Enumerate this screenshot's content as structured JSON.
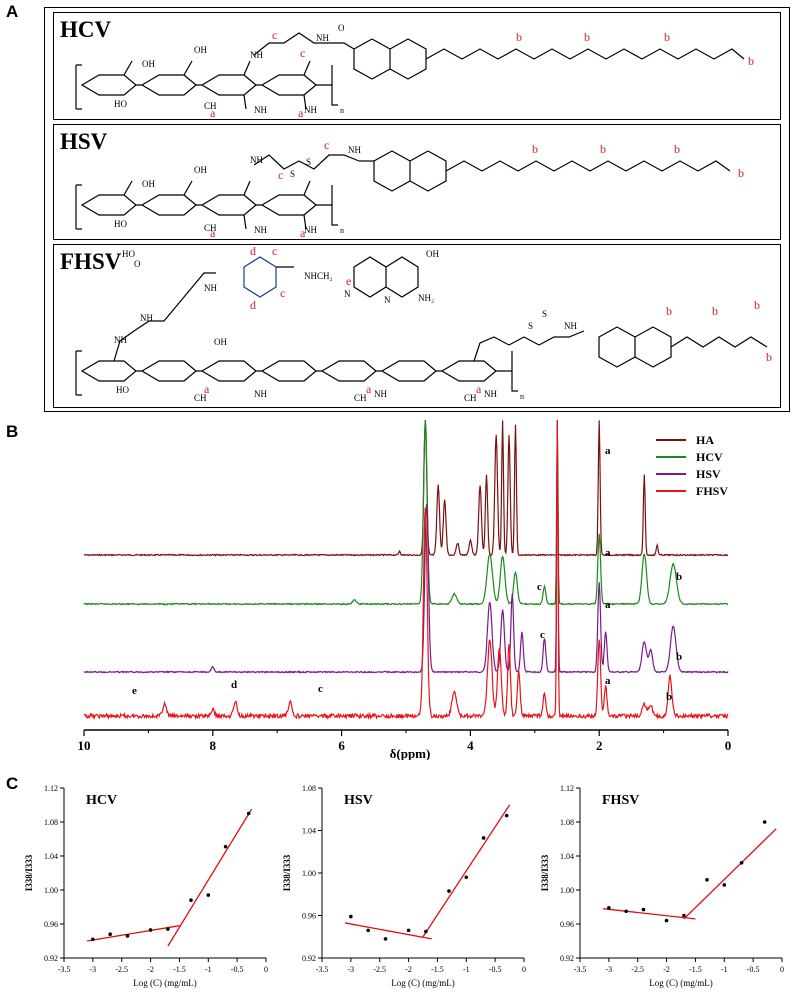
{
  "panels": {
    "a": "A",
    "b": "B",
    "c": "C"
  },
  "structures": [
    {
      "name": "HCV",
      "unit_labels": [
        "c",
        "c",
        "a",
        "a",
        "b",
        "b",
        "b",
        "b"
      ]
    },
    {
      "name": "HSV",
      "unit_labels": [
        "c",
        "c",
        "a",
        "a",
        "b",
        "b",
        "b",
        "b"
      ]
    },
    {
      "name": "FHSV",
      "unit_labels": [
        "d",
        "c",
        "d",
        "c",
        "e",
        "a",
        "a",
        "a",
        "b",
        "b",
        "b",
        "b"
      ]
    }
  ],
  "chem": {
    "oh": "OH",
    "ho": "HO",
    "nh": "NH",
    "ch3": "CH",
    "o": "O",
    "n": "n",
    "s": "S",
    "nh2": "NH₂",
    "nhch2": "NHCH₂",
    "n_atom": "N"
  },
  "nmr": {
    "legend": [
      {
        "name": "HA",
        "color": "#7b1010"
      },
      {
        "name": "HCV",
        "color": "#1a8a1a"
      },
      {
        "name": "HSV",
        "color": "#7a1a8a"
      },
      {
        "name": "FHSV",
        "color": "#e8141a"
      }
    ],
    "xlabel": "δ(ppm)",
    "x_ticks": [
      "10",
      "8",
      "6",
      "4",
      "2",
      "0"
    ],
    "peak_labels": [
      "a",
      "a",
      "a",
      "a",
      "b",
      "b",
      "b",
      "c",
      "c",
      "c",
      "d",
      "e"
    ]
  },
  "chart_data": [
    {
      "type": "scatter",
      "title": "HCV",
      "xlabel": "Log (C) (mg/mL)",
      "ylabel": "I338/I333",
      "xlim": [
        -3.5,
        0
      ],
      "ylim": [
        0.92,
        1.12
      ],
      "x_ticks": [
        "-3.5",
        "-3",
        "-2.5",
        "-2",
        "-1.5",
        "-1",
        "-0.5",
        "0"
      ],
      "y_ticks": [
        "0.92",
        "0.96",
        "1.00",
        "1.04",
        "1.08",
        "1.12"
      ],
      "points": [
        [
          -3.0,
          0.942
        ],
        [
          -2.7,
          0.948
        ],
        [
          -2.4,
          0.946
        ],
        [
          -2.0,
          0.953
        ],
        [
          -1.7,
          0.954
        ],
        [
          -1.3,
          0.988
        ],
        [
          -1.0,
          0.994
        ],
        [
          -0.7,
          1.051
        ],
        [
          -0.3,
          1.09
        ]
      ]
    },
    {
      "type": "scatter",
      "title": "HSV",
      "xlabel": "Log (C) (mg/mL)",
      "ylabel": "I338/I333",
      "xlim": [
        -3.5,
        0
      ],
      "ylim": [
        0.92,
        1.08
      ],
      "x_ticks": [
        "-3.5",
        "-3",
        "-2.5",
        "-2",
        "-1.5",
        "-1",
        "-0.5",
        "0"
      ],
      "y_ticks": [
        "0.92",
        "0.96",
        "1.00",
        "1.04",
        "1.08"
      ],
      "points": [
        [
          -3.0,
          0.959
        ],
        [
          -2.7,
          0.946
        ],
        [
          -2.4,
          0.938
        ],
        [
          -2.0,
          0.946
        ],
        [
          -1.7,
          0.945
        ],
        [
          -1.3,
          0.983
        ],
        [
          -1.0,
          0.996
        ],
        [
          -0.7,
          1.033
        ],
        [
          -0.3,
          1.054
        ]
      ]
    },
    {
      "type": "scatter",
      "title": "FHSV",
      "xlabel": "Log (C) (mg/mL)",
      "ylabel": "I338/I333",
      "xlim": [
        -3.5,
        0
      ],
      "ylim": [
        0.92,
        1.12
      ],
      "x_ticks": [
        "-3.5",
        "-3",
        "-2.5",
        "-2",
        "-1.5",
        "-1",
        "-0.5",
        "0"
      ],
      "y_ticks": [
        "0.92",
        "0.96",
        "1.00",
        "1.04",
        "1.08",
        "1.12"
      ],
      "points": [
        [
          -3.0,
          0.979
        ],
        [
          -2.7,
          0.975
        ],
        [
          -2.4,
          0.977
        ],
        [
          -2.0,
          0.964
        ],
        [
          -1.7,
          0.97
        ],
        [
          -1.3,
          1.012
        ],
        [
          -1.0,
          1.006
        ],
        [
          -0.7,
          1.032
        ],
        [
          -0.3,
          1.08
        ]
      ]
    }
  ]
}
